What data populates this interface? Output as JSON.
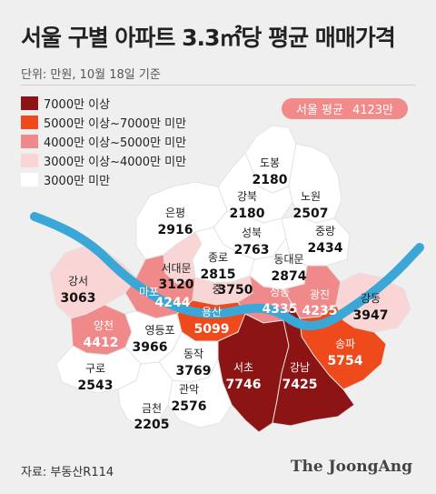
{
  "title": "서울 구별 아파트 3.3㎡당 평균 매매가격",
  "unit_note": "단위: 만원, 10월 18일 기준",
  "legend": [
    {
      "label": "7000만 이상",
      "color": "#8c1414"
    },
    {
      "label": "5000만 이상~7000만 미만",
      "color": "#ee4a1c"
    },
    {
      "label": "4000만 이상~5000만 미만",
      "color": "#f08a8a"
    },
    {
      "label": "3000만 이상~4000만 미만",
      "color": "#f9d5d5"
    },
    {
      "label": "3000만 미만",
      "color": "#ffffff"
    }
  ],
  "seoul_average": {
    "label": "서울 평균",
    "value": "4123만"
  },
  "districts": [
    {
      "name": "도봉",
      "value": "2180"
    },
    {
      "name": "강북",
      "value": "2180"
    },
    {
      "name": "노원",
      "value": "2507"
    },
    {
      "name": "은평",
      "value": "2916"
    },
    {
      "name": "성북",
      "value": "2763"
    },
    {
      "name": "중랑",
      "value": "2434"
    },
    {
      "name": "종로",
      "value": "2815"
    },
    {
      "name": "서대문",
      "value": "3120"
    },
    {
      "name": "동대문",
      "value": "2874"
    },
    {
      "name": "강서",
      "value": "3063"
    },
    {
      "name": "마포",
      "value": "4244"
    },
    {
      "name": "중",
      "value": "3750"
    },
    {
      "name": "성동",
      "value": "4335"
    },
    {
      "name": "광진",
      "value": "4235"
    },
    {
      "name": "강동",
      "value": "3947"
    },
    {
      "name": "용산",
      "value": "5099"
    },
    {
      "name": "양천",
      "value": "4412"
    },
    {
      "name": "영등포",
      "value": "3966"
    },
    {
      "name": "송파",
      "value": "5754"
    },
    {
      "name": "구로",
      "value": "2543"
    },
    {
      "name": "동작",
      "value": "3769"
    },
    {
      "name": "서초",
      "value": "7746"
    },
    {
      "name": "강남",
      "value": "7425"
    },
    {
      "name": "관악",
      "value": "2576"
    },
    {
      "name": "금천",
      "value": "2205"
    }
  ],
  "source": "자료: 부동산R114",
  "brand": "The JoongAng"
}
